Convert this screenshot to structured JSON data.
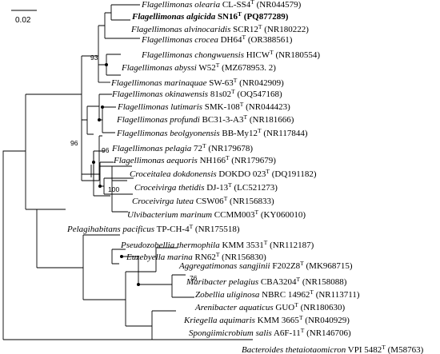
{
  "scale_bar": {
    "label": "0.02"
  },
  "taxa": [
    {
      "id": "olearia",
      "genus_species": "Flagellimonas olearia",
      "strain": "CL-SS4",
      "type_mark": "T",
      "accession": "(NR044579)",
      "bold": false
    },
    {
      "id": "algicida",
      "genus_species": "Flagellimonas algicida",
      "strain": "SN16",
      "type_mark": "T",
      "accession": "(PQ877289)",
      "bold": true
    },
    {
      "id": "alvinocaridis",
      "genus_species": "Flagellimonas alvinocaridis",
      "strain": "SCR12",
      "type_mark": "T",
      "accession": "(NR180222)",
      "bold": false
    },
    {
      "id": "crocea",
      "genus_species": "Flagellimonas crocea",
      "strain": "DH64",
      "type_mark": "T",
      "accession": "(OR388561)",
      "bold": false
    },
    {
      "id": "chongwuensis",
      "genus_species": "Flagellimonas chongwuensis",
      "strain": "HICW",
      "type_mark": "T",
      "accession": "(NR180554)",
      "bold": false
    },
    {
      "id": "abyssi",
      "genus_species": "Flagellimonas abyssi",
      "strain": "W52",
      "type_mark": "T",
      "accession": "(MZ678953. 2)",
      "bold": false
    },
    {
      "id": "marinaquae",
      "genus_species": "Flagellimonas marinaquae",
      "strain": "SW-63",
      "type_mark": "T",
      "accession": "(NR042909)",
      "bold": false
    },
    {
      "id": "okinawensis",
      "genus_species": "Flagellimonas okinawensis",
      "strain": "81s02",
      "type_mark": "T",
      "accession": "(OQ547168)",
      "bold": false
    },
    {
      "id": "lutimaris",
      "genus_species": "Flagellimonas lutimaris",
      "strain": "SMK-108",
      "type_mark": "T",
      "accession": "(NR044423)",
      "bold": false
    },
    {
      "id": "profundi",
      "genus_species": "Flagellimonas profundi",
      "strain": "BC31-3-A3",
      "type_mark": "T",
      "accession": "(NR181666)",
      "bold": false
    },
    {
      "id": "beolgyonensis",
      "genus_species": "Flagellimonas beolgyonensis",
      "strain": "BB-My12",
      "type_mark": "T",
      "accession": "(NR117844)",
      "bold": false
    },
    {
      "id": "pelagia",
      "genus_species": "Flagellimonas pelagia",
      "strain": "72",
      "type_mark": "T",
      "accession": "(NR179678)",
      "bold": false
    },
    {
      "id": "aequoris",
      "genus_species": "Flagellimonas aequoris",
      "strain": "NH166",
      "type_mark": "T",
      "accession": "(NR179679)",
      "bold": false
    },
    {
      "id": "dokdonensis",
      "genus_species": "Croceitalea dokdonensis",
      "strain": "DOKDO 023",
      "type_mark": "T",
      "accession": "(DQ191182)",
      "bold": false
    },
    {
      "id": "thetidis",
      "genus_species": "Croceivirga thetidis",
      "strain": "DJ-13",
      "type_mark": "T",
      "accession": "(LC521273)",
      "bold": false
    },
    {
      "id": "lutea",
      "genus_species": "Croceivirga lutea",
      "strain": "CSW06",
      "type_mark": "T",
      "accession": "(NR156833)",
      "bold": false
    },
    {
      "id": "ulvibacterium",
      "genus_species": "Ulvibacterium marinum",
      "strain": "CCMM003",
      "type_mark": "T",
      "accession": "(KY060010)",
      "bold": false
    },
    {
      "id": "pelagihabitans",
      "genus_species": "Pelagihabitans pacificus",
      "strain": "TP-CH-4",
      "type_mark": "T",
      "accession": "(NR175518)",
      "bold": false
    },
    {
      "id": "pseudozobellia",
      "genus_species": "Pseudozobellia thermophila",
      "strain": "KMM 3531",
      "type_mark": "T",
      "accession": "(NR112187)",
      "bold": false
    },
    {
      "id": "euzebyella",
      "genus_species": "Euzebyella marina",
      "strain": "RN62",
      "type_mark": "T",
      "accession": "(NR156830)",
      "bold": false
    },
    {
      "id": "aggregatimonas",
      "genus_species": "Aggregatimonas sangjinii",
      "strain": "F202Z8",
      "type_mark": "T",
      "accession": "(MK968715)",
      "bold": false
    },
    {
      "id": "maribacter",
      "genus_species": "Maribacter pelagius",
      "strain": "CBA3204",
      "type_mark": "T",
      "accession": "(NR158088)",
      "bold": false
    },
    {
      "id": "zobellia",
      "genus_species": "Zobellia uliginosa",
      "strain": "NBRC 14962",
      "type_mark": "T",
      "accession": "(NR113711)",
      "bold": false
    },
    {
      "id": "arenibacter",
      "genus_species": "Arenibacter aquaticus",
      "strain": "GUO",
      "type_mark": "T",
      "accession": "(NR180630)",
      "bold": false
    },
    {
      "id": "kriegella",
      "genus_species": "Kriegella aquimaris",
      "strain": "KMM 3665",
      "type_mark": "T",
      "accession": "(NR040929)",
      "bold": false
    },
    {
      "id": "spongiimicrobium",
      "genus_species": "Spongiimicrobium salis",
      "strain": "A6F-11",
      "type_mark": "T",
      "accession": "(NR146706)",
      "bold": false
    },
    {
      "id": "bacteroides",
      "genus_species": "Bacteroides thetaiotaomicron",
      "strain": "VPI 5482",
      "type_mark": "T",
      "accession": "(M58763)",
      "bold": false
    }
  ],
  "bootstrap_values": [
    {
      "id": "bs-chongwuensis-abyssi",
      "value": "93"
    },
    {
      "id": "bs-flagellimonas-croceitalea",
      "value": "96"
    },
    {
      "id": "bs-pelagia-aequoris",
      "value": "96"
    },
    {
      "id": "bs-croceivirga",
      "value": "100"
    },
    {
      "id": "bs-maribacter-zobellia",
      "value": "76"
    }
  ]
}
